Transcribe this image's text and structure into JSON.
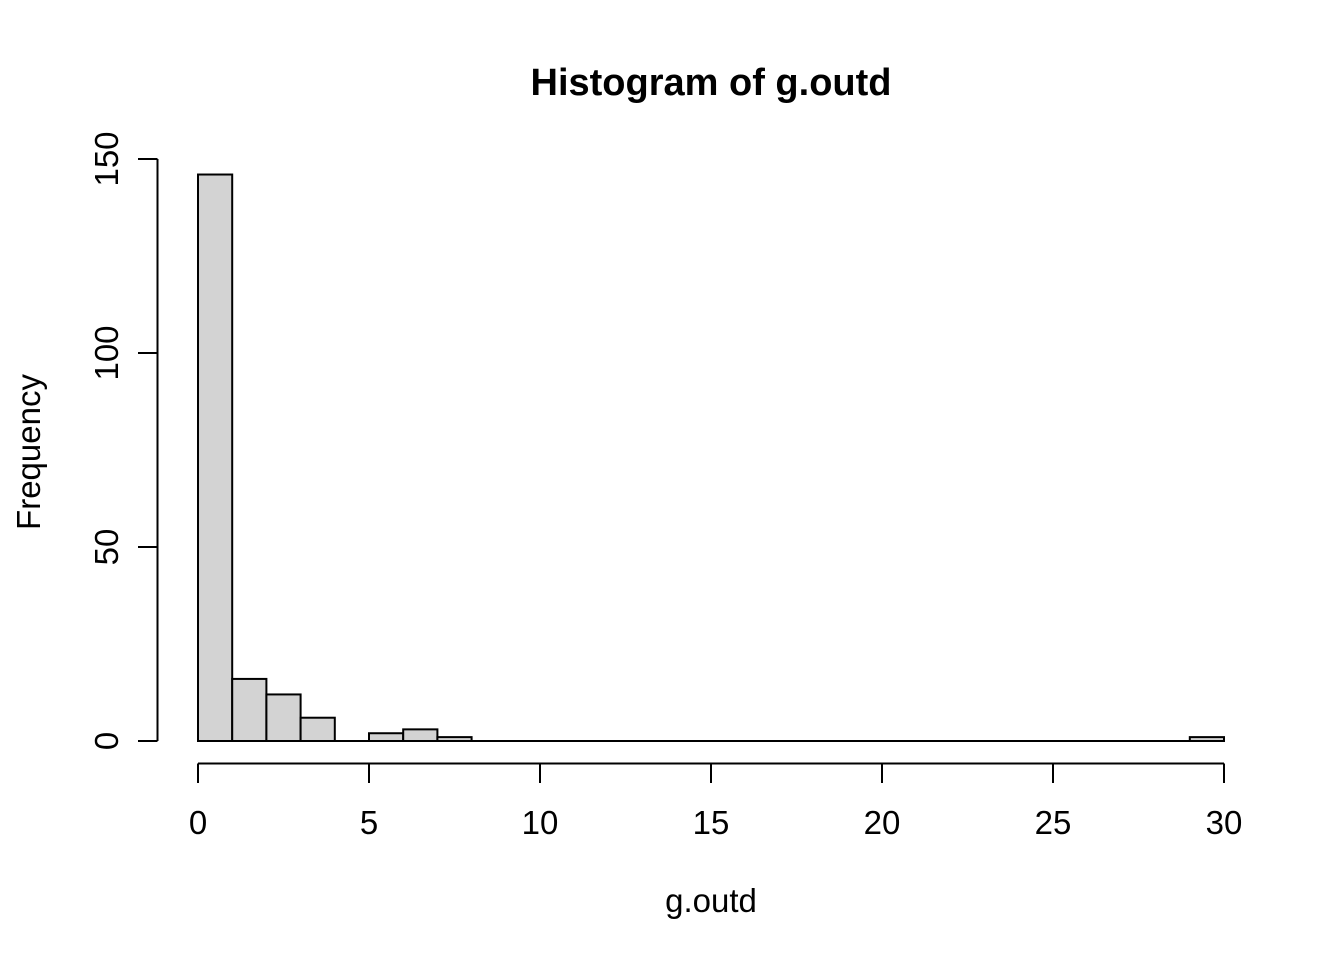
{
  "page": {
    "background": "#ffffff"
  },
  "chart_data": {
    "type": "bar",
    "subtype": "histogram",
    "title": "Histogram of g.outd",
    "xlabel": "g.outd",
    "ylabel": "Frequency",
    "xlim": [
      0,
      30
    ],
    "ylim": [
      0,
      150
    ],
    "x_ticks": [
      0,
      5,
      10,
      15,
      20,
      25,
      30
    ],
    "y_ticks": [
      0,
      50,
      100,
      150
    ],
    "bin_start": 0,
    "bin_width": 1,
    "bin_counts": [
      146,
      16,
      12,
      6,
      0,
      2,
      3,
      1,
      0,
      0,
      0,
      0,
      0,
      0,
      0,
      0,
      0,
      0,
      0,
      0,
      0,
      0,
      0,
      0,
      0,
      0,
      0,
      0,
      0,
      1
    ],
    "bar_fill": "#d3d3d3",
    "bar_stroke": "#000000",
    "axis_color": "#000000",
    "text_color": "#000000",
    "grid": false,
    "legend": false
  }
}
